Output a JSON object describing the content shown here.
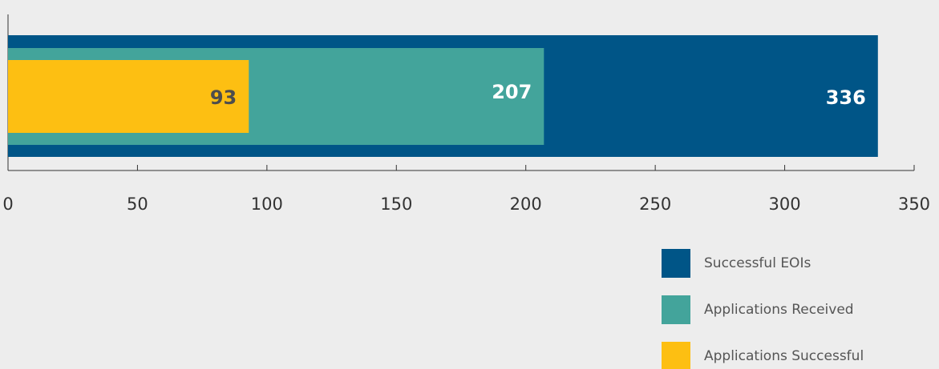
{
  "chart_data": {
    "type": "bar",
    "orientation": "horizontal",
    "categories": [
      null
    ],
    "series": [
      {
        "name": "Successful EOIs",
        "color": "#005587",
        "label_color": "#ffffff",
        "values": [
          336
        ]
      },
      {
        "name": "Applications Received",
        "color": "#43a49b",
        "label_color": "#ffffff",
        "values": [
          207
        ]
      },
      {
        "name": "Applications Successful",
        "color": "#fdbf12",
        "label_color": "#4d4d4d",
        "values": [
          93
        ]
      }
    ],
    "xlim": [
      0,
      350
    ],
    "xticks": [
      0,
      50,
      100,
      150,
      200,
      250,
      300,
      350
    ],
    "legend": "bottom-right"
  }
}
